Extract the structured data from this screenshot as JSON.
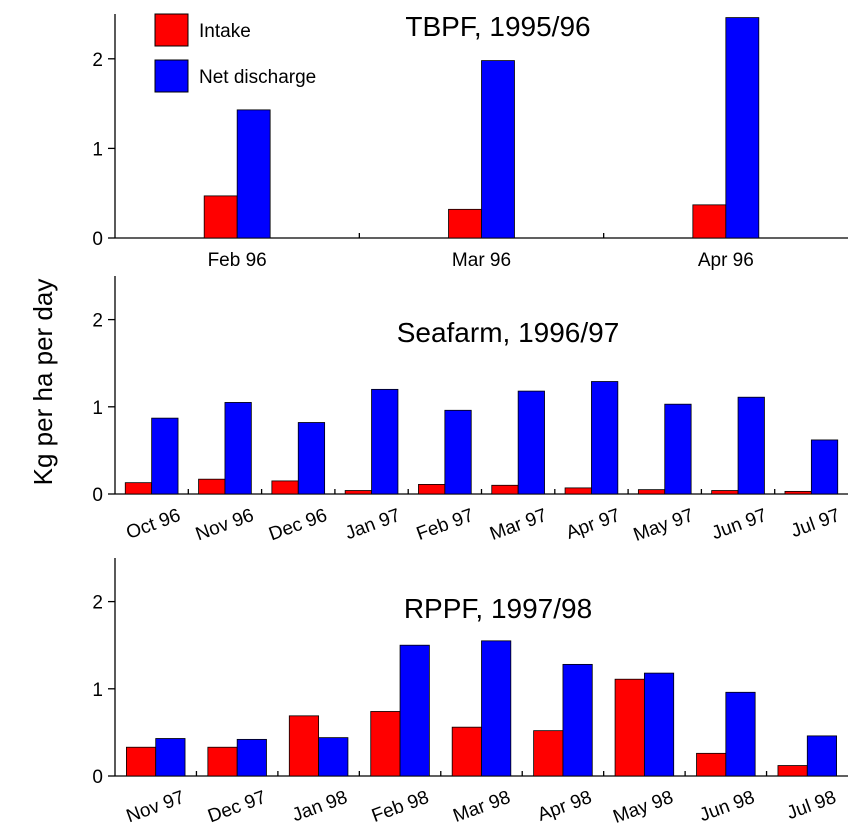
{
  "ylabel": "Kg per ha per day",
  "legend": {
    "items": [
      {
        "label": "Intake",
        "color": "#ff0000"
      },
      {
        "label": "Net discharge",
        "color": "#0000ff"
      }
    ]
  },
  "chart_data": [
    {
      "type": "bar",
      "title": "TBPF, 1995/96",
      "ylabel": "Kg per ha per day",
      "ylim": [
        0,
        2.5
      ],
      "yticks": [
        0,
        1,
        2
      ],
      "categories": [
        "Feb 96",
        "Mar 96",
        "Apr 96"
      ],
      "series": [
        {
          "name": "Intake",
          "color": "#ff0000",
          "values": [
            0.47,
            0.32,
            0.37
          ]
        },
        {
          "name": "Net discharge",
          "color": "#0000ff",
          "values": [
            1.43,
            1.98,
            2.46
          ]
        }
      ]
    },
    {
      "type": "bar",
      "title": "Seafarm, 1996/97",
      "ylabel": "Kg per ha per day",
      "ylim": [
        0,
        2.5
      ],
      "yticks": [
        0,
        1,
        2
      ],
      "categories": [
        "Oct 96",
        "Nov 96",
        "Dec 96",
        "Jan 97",
        "Feb 97",
        "Mar 97",
        "Apr 97",
        "May 97",
        "Jun 97",
        "Jul 97"
      ],
      "series": [
        {
          "name": "Intake",
          "color": "#ff0000",
          "values": [
            0.13,
            0.17,
            0.15,
            0.04,
            0.11,
            0.1,
            0.07,
            0.05,
            0.04,
            0.03
          ]
        },
        {
          "name": "Net discharge",
          "color": "#0000ff",
          "values": [
            0.87,
            1.05,
            0.82,
            1.2,
            0.96,
            1.18,
            1.29,
            1.03,
            1.11,
            0.62
          ]
        }
      ]
    },
    {
      "type": "bar",
      "title": "RPPF, 1997/98",
      "ylabel": "Kg per ha per day",
      "ylim": [
        0,
        2.5
      ],
      "yticks": [
        0,
        1,
        2
      ],
      "categories": [
        "Nov 97",
        "Dec 97",
        "Jan 98",
        "Feb 98",
        "Mar 98",
        "Apr 98",
        "May 98",
        "Jun 98",
        "Jul 98"
      ],
      "series": [
        {
          "name": "Intake",
          "color": "#ff0000",
          "values": [
            0.33,
            0.33,
            0.69,
            0.74,
            0.56,
            0.52,
            1.11,
            0.26,
            0.12
          ]
        },
        {
          "name": "Net discharge",
          "color": "#0000ff",
          "values": [
            0.43,
            0.42,
            0.44,
            1.5,
            1.55,
            1.28,
            1.18,
            0.96,
            0.46
          ]
        }
      ]
    }
  ]
}
